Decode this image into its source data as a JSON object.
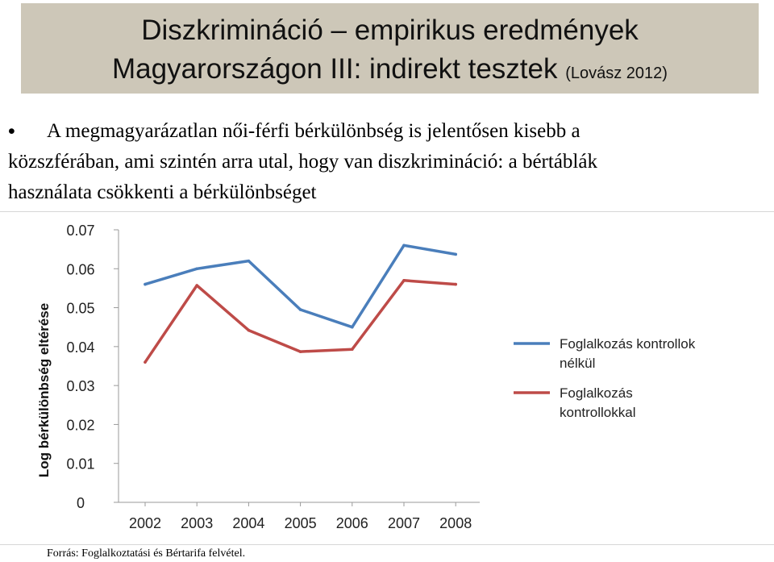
{
  "slide": {
    "title_line1": "Diszkrimináció – empirikus eredmények",
    "title_line2": "Magyarországon III: indirekt tesztek",
    "title_citation": "(Lovász 2012)",
    "bullet_lines": [
      "A megmagyarázatlan női-férfi bérkülönbség is jelentősen kisebb a",
      "közszférában, ami szintén arra utal, hogy van diszkrimináció: a bértáblák",
      "használata csökkenti a bérkülönbséget"
    ],
    "source_note": "Forrás: Foglalkoztatási és Bértarifa felvétel.",
    "colors": {
      "title_band": "#cdc7b8"
    }
  },
  "chart_data": {
    "type": "line",
    "x": [
      "2002",
      "2003",
      "2004",
      "2005",
      "2006",
      "2007",
      "2008"
    ],
    "series": [
      {
        "name": "Foglalkozás kontrollok nélkül",
        "legend_lines": [
          "Foglalkozás kontrollok",
          "nélkül"
        ],
        "values": [
          0.056,
          0.06,
          0.062,
          0.0495,
          0.045,
          0.066,
          0.0637
        ],
        "color": "#4a7ebb"
      },
      {
        "name": "Foglalkozás kontrollokkal",
        "legend_lines": [
          "Foglalkozás",
          "kontrollokkal"
        ],
        "values": [
          0.036,
          0.0557,
          0.0442,
          0.0387,
          0.0393,
          0.057,
          0.056
        ],
        "color": "#be4b48"
      }
    ],
    "ylabel": "Log bérkülönbség eltérése",
    "xlabel": "",
    "ylim": [
      0,
      0.07
    ],
    "yticks": [
      "0",
      "0.01",
      "0.02",
      "0.03",
      "0.04",
      "0.05",
      "0.06",
      "0.07"
    ],
    "grid": false,
    "legend_position": "right"
  }
}
